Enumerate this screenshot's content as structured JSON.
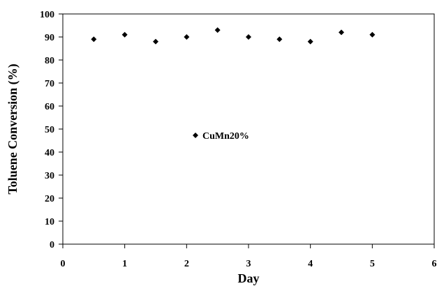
{
  "chart_data": {
    "type": "scatter",
    "xlabel": "Day",
    "ylabel": "Toluene Conversion (%)",
    "xlim": [
      0,
      6
    ],
    "ylim": [
      0,
      100
    ],
    "x_ticks": [
      "0",
      "1",
      "2",
      "3",
      "4",
      "5",
      "6"
    ],
    "y_ticks": [
      "0",
      "10",
      "20",
      "30",
      "40",
      "50",
      "60",
      "70",
      "80",
      "90",
      "100"
    ],
    "grid": false,
    "legend_position": "center",
    "marker": "diamond",
    "series": [
      {
        "name": "CuMn20%",
        "color": "#000000",
        "points": [
          {
            "x": 0.5,
            "y": 89
          },
          {
            "x": 1.0,
            "y": 91
          },
          {
            "x": 1.5,
            "y": 88
          },
          {
            "x": 2.0,
            "y": 90
          },
          {
            "x": 2.5,
            "y": 93
          },
          {
            "x": 3.0,
            "y": 90
          },
          {
            "x": 3.5,
            "y": 89
          },
          {
            "x": 4.0,
            "y": 88
          },
          {
            "x": 4.5,
            "y": 92
          },
          {
            "x": 5.0,
            "y": 91
          }
        ]
      }
    ]
  }
}
